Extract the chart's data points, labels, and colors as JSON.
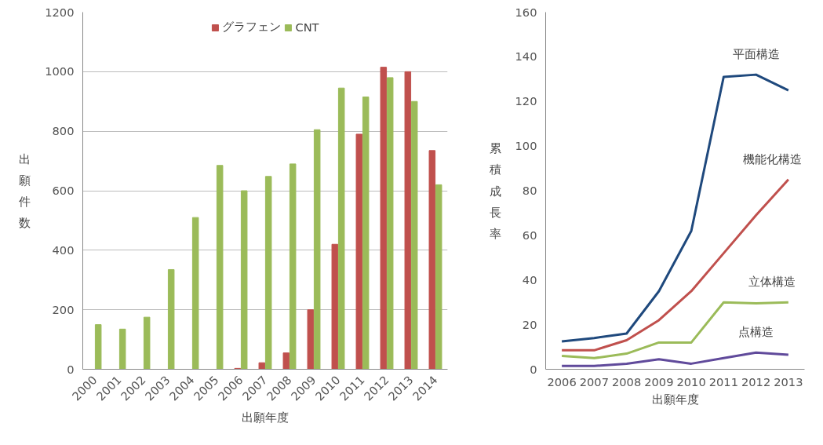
{
  "chart_data": [
    {
      "type": "bar",
      "ylabel": "出願件数",
      "xlabel": "出願年度",
      "categories": [
        "2000",
        "2001",
        "2002",
        "2003",
        "2004",
        "2005",
        "2006",
        "2007",
        "2008",
        "2009",
        "2010",
        "2011",
        "2012",
        "2013",
        "2014"
      ],
      "series": [
        {
          "name": "グラフェン",
          "color": "#c0504d",
          "values": [
            0,
            0,
            0,
            0,
            0,
            0,
            3,
            22,
            55,
            200,
            420,
            790,
            1015,
            1000,
            735
          ]
        },
        {
          "name": "CNT",
          "color": "#9bbb59",
          "values": [
            150,
            135,
            175,
            335,
            510,
            685,
            600,
            648,
            690,
            805,
            945,
            915,
            980,
            900,
            620
          ]
        }
      ],
      "ylim": [
        0,
        1200
      ],
      "yticks": [
        0,
        200,
        400,
        600,
        800,
        1000,
        1200
      ],
      "grid": "y",
      "legend": "top"
    },
    {
      "type": "line",
      "ylabel": "累積成長率",
      "xlabel": "出願年度",
      "categories": [
        "2006",
        "2007",
        "2008",
        "2009",
        "2010",
        "2011",
        "2012",
        "2013"
      ],
      "series": [
        {
          "name": "平面構造",
          "color": "#1f497d",
          "values": [
            12.5,
            14,
            16,
            35,
            62,
            131,
            132,
            125
          ]
        },
        {
          "name": "機能化構造",
          "color": "#c0504d",
          "values": [
            8.5,
            8.5,
            13,
            22,
            35,
            52,
            69,
            85
          ]
        },
        {
          "name": "立体構造",
          "color": "#9bbb59",
          "values": [
            6,
            5,
            7,
            12,
            12,
            30,
            29.5,
            30
          ]
        },
        {
          "name": "点構造",
          "color": "#604a9b",
          "values": [
            1.5,
            1.5,
            2.5,
            4.5,
            2.5,
            5,
            7.5,
            6.5
          ]
        }
      ],
      "ylim": [
        0,
        160
      ],
      "yticks": [
        0,
        20,
        40,
        60,
        80,
        100,
        120,
        140,
        160
      ],
      "grid": false,
      "legend": false
    }
  ]
}
